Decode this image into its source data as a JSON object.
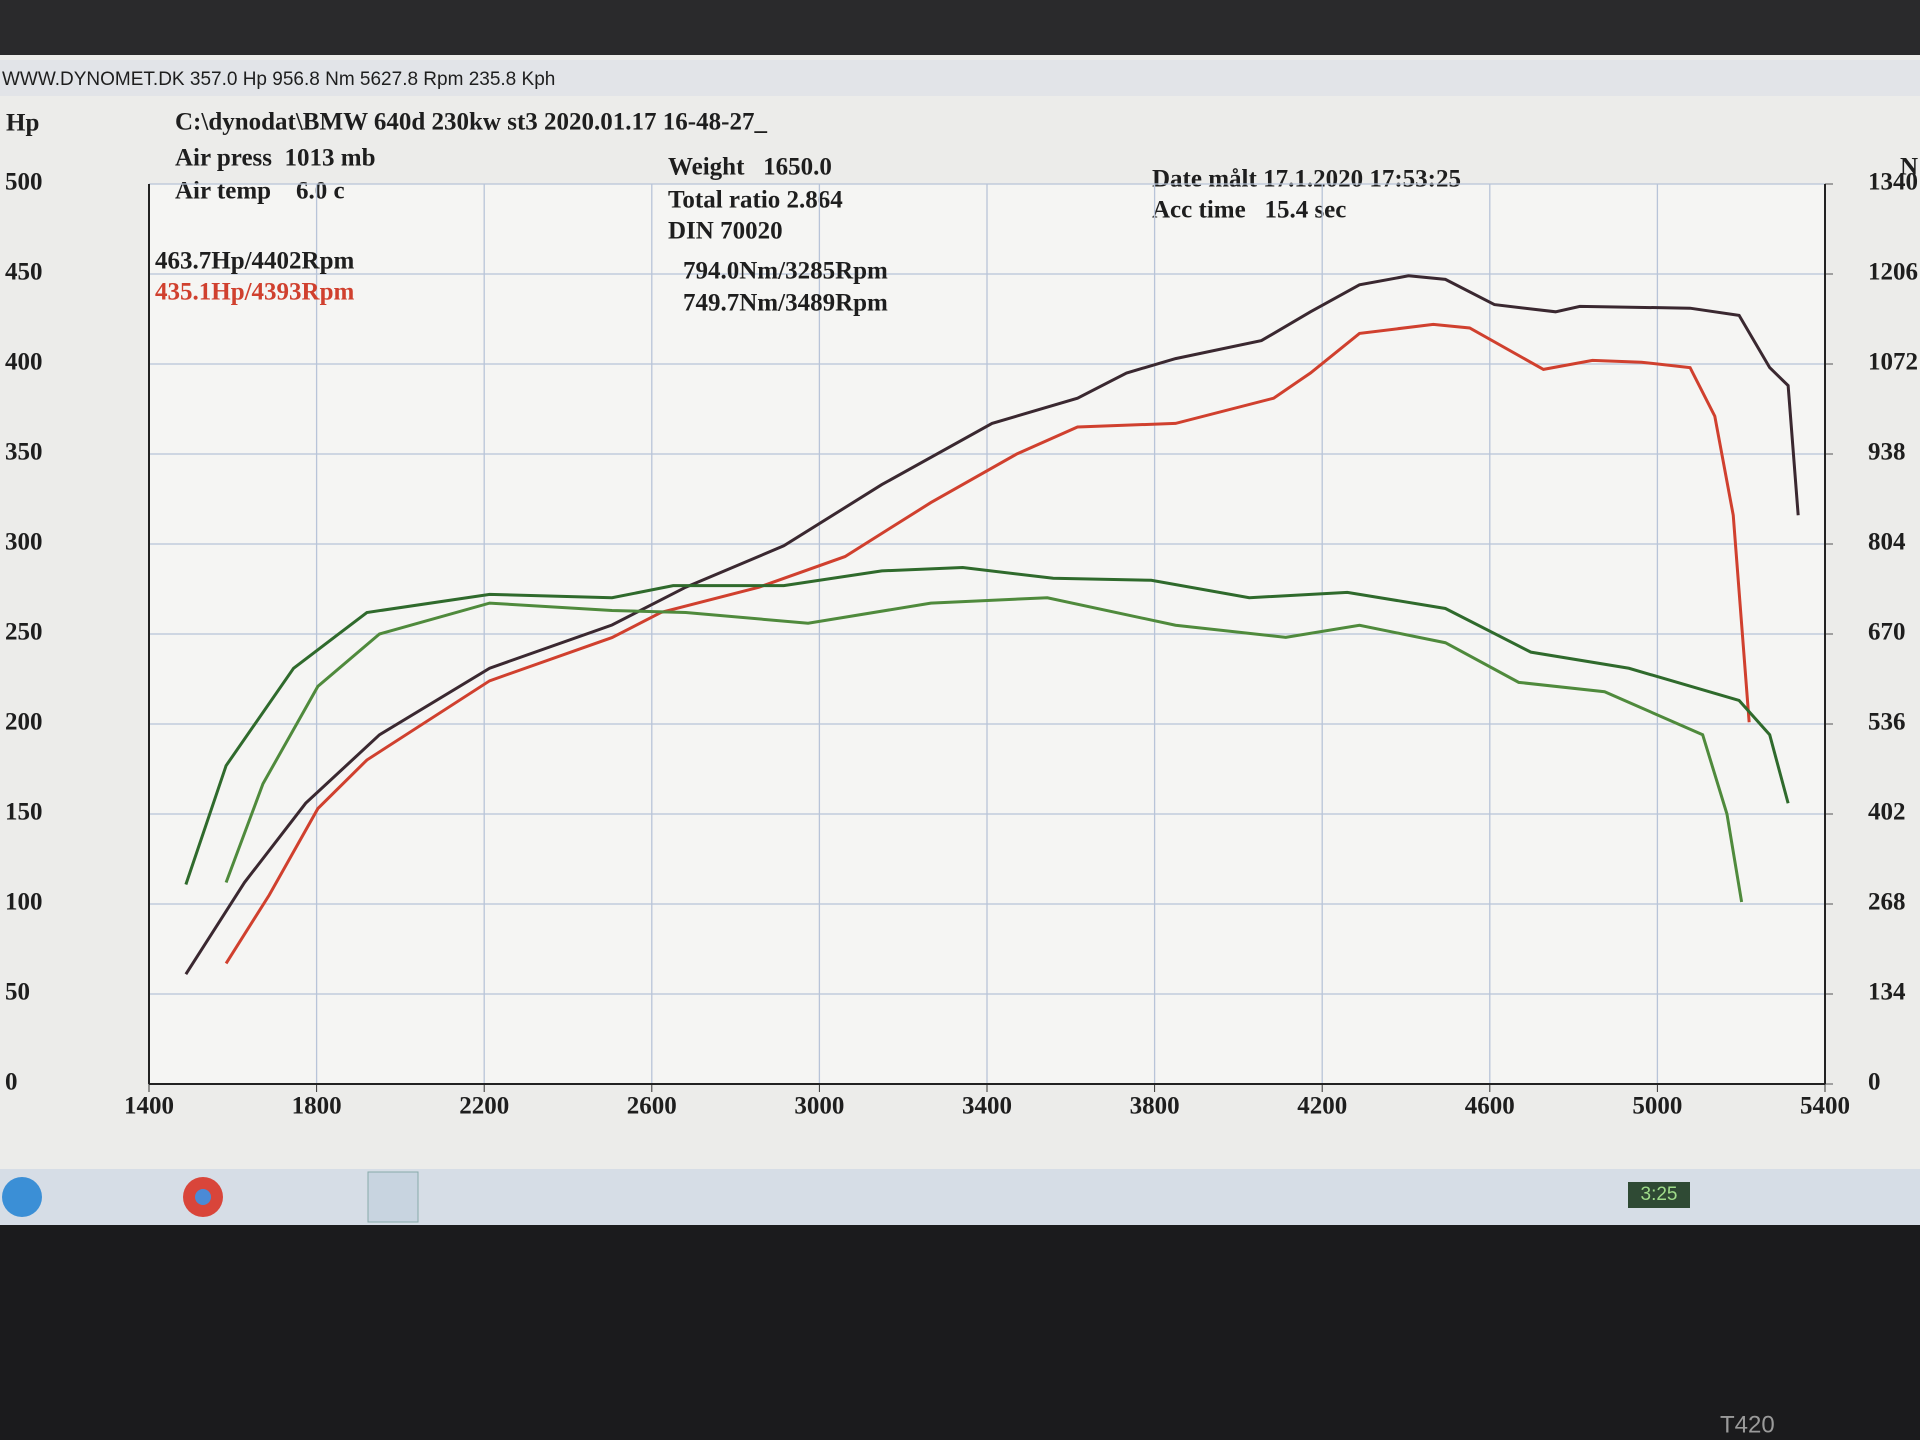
{
  "window_title": "WWW.DYNOMET.DK  357.0 Hp 956.8 Nm 5627.8 Rpm 235.8 Kph",
  "chart_data": {
    "type": "line",
    "title": "C:\\dynodat\\BMW 640d 230kw st3 2020.01.17 16-48-27_",
    "info": [
      "Air press  1013 mb",
      "Air temp    6.0 c",
      "Weight   1650.0",
      "Total ratio 2.864",
      "DIN 70020",
      "Date målt 17.1.2020 17:53:25",
      "Acc time   15.4 sec"
    ],
    "ylabel": "Hp",
    "y2label": "N",
    "xlim": [
      1400,
      5400
    ],
    "xticks": [
      1400,
      1800,
      2200,
      2600,
      3000,
      3400,
      3800,
      4200,
      4600,
      5000,
      5400
    ],
    "ylim": [
      0,
      500
    ],
    "yticks": [
      0,
      50,
      100,
      150,
      200,
      250,
      300,
      350,
      400,
      450,
      500
    ],
    "y2lim": [
      0,
      1340
    ],
    "y2ticks": [
      0,
      134,
      268,
      402,
      536,
      670,
      804,
      938,
      1072,
      1206,
      1340
    ],
    "grid": true,
    "series": [
      {
        "name": "463.7Hp/4402Rpm",
        "color": "#3a2830",
        "x": [
          1488,
          1628,
          1774,
          1950,
          2213,
          2505,
          2681,
          2915,
          3149,
          3412,
          3616,
          3733,
          3850,
          4055,
          4172,
          4289,
          4406,
          4494,
          4611,
          4757,
          4815,
          5078,
          5195,
          5268,
          5312,
          5336
        ],
        "values": [
          61,
          112,
          156,
          194,
          231,
          255,
          276,
          299,
          333,
          367,
          381,
          395,
          403,
          413,
          429,
          444,
          449,
          447,
          433,
          429,
          432,
          431,
          427,
          398,
          388,
          316
        ]
      },
      {
        "name": "435.1Hp/4393Rpm",
        "color": "#d0402e",
        "x": [
          1584,
          1687,
          1803,
          1920,
          2213,
          2505,
          2622,
          2856,
          3061,
          3266,
          3471,
          3616,
          3850,
          4084,
          4172,
          4289,
          4465,
          4552,
          4728,
          4845,
          4962,
          5078,
          5137,
          5181,
          5219
        ],
        "values": [
          67,
          105,
          153,
          180,
          224,
          248,
          262,
          276,
          293,
          323,
          350,
          365,
          367,
          381,
          395,
          417,
          422,
          420,
          397,
          402,
          401,
          398,
          371,
          316,
          201
        ]
      },
      {
        "name": "794.0Nm/3285Rpm",
        "color": "#2f6a2c",
        "axis": "y2",
        "x": [
          1488,
          1584,
          1745,
          1920,
          2213,
          2505,
          2651,
          2915,
          3149,
          3342,
          3558,
          3792,
          4026,
          4260,
          4494,
          4698,
          4932,
          5195,
          5268,
          5312
        ],
        "values": [
          297,
          474,
          619,
          702,
          729,
          724,
          742,
          742,
          764,
          769,
          753,
          750,
          724,
          732,
          708,
          643,
          619,
          571,
          520,
          418
        ]
      },
      {
        "name": "749.7Nm/3489Rpm",
        "color": "#4f8a3c",
        "axis": "y2",
        "x": [
          1584,
          1672,
          1803,
          1950,
          2213,
          2505,
          2681,
          2973,
          3266,
          3544,
          3850,
          4113,
          4289,
          4494,
          4669,
          4874,
          5108,
          5166,
          5201
        ],
        "values": [
          300,
          447,
          592,
          670,
          716,
          705,
          702,
          686,
          716,
          724,
          683,
          665,
          683,
          657,
          598,
          584,
          520,
          402,
          271
        ]
      }
    ]
  },
  "taskbar": {
    "clock": "3:25"
  },
  "bezel_label": "T420"
}
